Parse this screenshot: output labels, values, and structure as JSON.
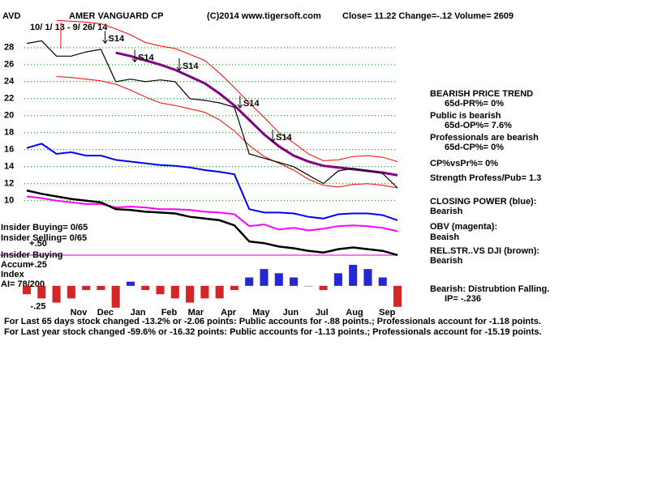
{
  "header": {
    "symbol": "AVD",
    "name": "AMER VANGUARD CP",
    "source": "(C)2014 www.tigersoft.com",
    "quote": "Close=  11.22  Change=-.12 Volume= 2609",
    "dates": "10/ 1/ 13 - 9/ 26/ 14"
  },
  "left_notes": [
    "Insider Buying= 0/65",
    "Insider Selling= 0/65",
    "Insider Buying",
    "Accum",
    "Index",
    "AI= 78/200"
  ],
  "side_notes": [
    "BEARISH PRICE TREND",
    "65d-PR%= 0%",
    "Public is bearish",
    "65d-OP%= 7.6%",
    "Professionals are bearish",
    "65d-CP%= 0%",
    "CP%vsPr%=  0%",
    "Strength Profess/Pub= 1.3",
    "CLOSING POWER (blue):",
    "Bearish",
    "OBV (magenta):",
    "Beaish",
    "REL.STR..VS DJI (brown):",
    "Bearish",
    "Bearish: Distrubtion Falling.",
    "IP= -.236"
  ],
  "footer": [
    "For Last 65 days stock changed -13.2% or -2.06 points:  Public accounts for -.88 points.;  Professionals account for -1.18 points.",
    "For Last year stock changed -59.6% or -16.32 points:  Public accounts for -1.13 points.;  Professionals account for -15.19 points."
  ],
  "chart_data": [
    {
      "type": "line",
      "x": [
        0,
        1,
        2,
        3,
        4,
        5,
        6,
        7,
        8,
        9,
        10,
        11,
        12,
        13,
        14,
        15,
        16,
        17,
        18,
        19,
        20,
        21,
        22,
        23,
        24,
        25
      ],
      "xlim": [
        0,
        25
      ],
      "xticks": [
        {
          "value": 3.5,
          "label": "Nov"
        },
        {
          "value": 5.3,
          "label": "Dec"
        },
        {
          "value": 7.5,
          "label": "Jan"
        },
        {
          "value": 9.6,
          "label": "Feb"
        },
        {
          "value": 11.4,
          "label": "Mar"
        },
        {
          "value": 13.6,
          "label": "Apr"
        },
        {
          "value": 15.8,
          "label": "May"
        },
        {
          "value": 17.8,
          "label": "Jun"
        },
        {
          "value": 19.9,
          "label": "Jul"
        },
        {
          "value": 22.1,
          "label": "Aug"
        },
        {
          "value": 24.3,
          "label": "Sep"
        }
      ],
      "ylim": [
        3.4,
        31.7
      ],
      "yticks": [
        10,
        12,
        14,
        16,
        18,
        20,
        22,
        24,
        26,
        28
      ],
      "grid": true,
      "grid_color": "#008000",
      "series": [
        {
          "color": "#ff0000",
          "values": [
            null,
            null,
            31.2,
            31.1,
            31,
            30.8,
            30.2,
            29.5,
            28.6,
            28.2,
            27.9,
            27.2,
            26.5,
            25.0,
            23.3,
            21.5,
            19.8,
            18.0,
            16.8,
            15.5,
            14.7,
            14.8,
            15.2,
            15.3,
            15.1,
            14.6
          ]
        },
        {
          "color": "#ff0000",
          "values": [
            null,
            null,
            24.6,
            24.5,
            24.3,
            24.1,
            23.7,
            23.0,
            22.2,
            21.5,
            21.2,
            20.8,
            20.4,
            19.5,
            18.2,
            16.5,
            15.2,
            14.4,
            13.6,
            12.5,
            11.8,
            11.6,
            11.9,
            12.0,
            11.8,
            11.5
          ]
        },
        {
          "color": "#800080",
          "values": [
            null,
            null,
            null,
            null,
            null,
            null,
            27.4,
            27.0,
            26.5,
            26.0,
            25.4,
            24.6,
            23.8,
            22.6,
            21.2,
            19.5,
            17.8,
            16.4,
            15.3,
            14.6,
            14.1,
            13.9,
            13.7,
            13.5,
            13.3,
            13.0
          ]
        },
        {
          "color": "#000000",
          "values": [
            28.5,
            28.8,
            27,
            27,
            27.5,
            27.8,
            24,
            24.3,
            24,
            24.2,
            24,
            22,
            21.8,
            21.5,
            21,
            15.5,
            15,
            14.5,
            14,
            13,
            12,
            13.5,
            13.8,
            13.5,
            13.2,
            11.5
          ]
        },
        {
          "color": "#0000ff",
          "values": [
            16.2,
            16.7,
            15.5,
            15.7,
            15.3,
            15.3,
            14.8,
            14.6,
            14.4,
            14.2,
            14.1,
            13.9,
            13.6,
            13.4,
            13.1,
            9.0,
            8.6,
            8.6,
            8.5,
            8.1,
            7.9,
            8.4,
            8.5,
            8.5,
            8.3,
            7.7
          ]
        },
        {
          "color": "#ff00ff",
          "values": [
            10.5,
            10.3,
            10,
            9.8,
            9.6,
            9.6,
            9.2,
            9.3,
            9.2,
            9.0,
            9.0,
            8.9,
            8.7,
            8.6,
            8.4,
            7.0,
            7.2,
            6.6,
            6.8,
            6.5,
            6.7,
            7.0,
            7.1,
            7.0,
            6.8,
            6.4
          ]
        },
        {
          "color": "#000000",
          "values": [
            11.2,
            10.8,
            10.5,
            10.2,
            10,
            9.8,
            9.0,
            8.9,
            8.7,
            8.6,
            8.5,
            8.1,
            7.9,
            7.7,
            7.1,
            5.2,
            5.0,
            4.6,
            4.4,
            4.1,
            3.9,
            4.3,
            4.5,
            4.3,
            4.1,
            3.6
          ]
        }
      ],
      "annotations": [
        {
          "text": "S14",
          "x": 5.5,
          "y": 29.0
        },
        {
          "text": "S14",
          "x": 7.5,
          "y": 26.8
        },
        {
          "text": "S14",
          "x": 10.5,
          "y": 25.8
        },
        {
          "text": "S14",
          "x": 14.6,
          "y": 21.4
        },
        {
          "text": "S14",
          "x": 16.8,
          "y": 17.4
        }
      ]
    },
    {
      "type": "bar",
      "x": [
        0,
        1,
        2,
        3,
        4,
        5,
        6,
        7,
        8,
        9,
        10,
        11,
        12,
        13,
        14,
        15,
        16,
        17,
        18,
        19,
        20,
        21,
        22,
        23,
        24,
        25
      ],
      "xlim": [
        0,
        25
      ],
      "ylim": [
        -0.31,
        0.52
      ],
      "yticks": [
        {
          "value": 0.5,
          "label": "+.50"
        },
        {
          "value": 0.25,
          "label": "+.25"
        },
        {
          "value": -0.25,
          "label": "-.25"
        }
      ],
      "positive_color": "#0000cc",
      "negative_color": "#cc0000",
      "values": [
        -0.1,
        -0.15,
        -0.2,
        -0.15,
        -0.05,
        -0.05,
        -0.26,
        0.05,
        -0.05,
        -0.1,
        -0.15,
        -0.2,
        -0.15,
        -0.15,
        -0.05,
        0.1,
        0.2,
        0.15,
        0.1,
        0.0,
        -0.05,
        0.15,
        0.25,
        0.2,
        0.1,
        -0.25
      ]
    }
  ]
}
